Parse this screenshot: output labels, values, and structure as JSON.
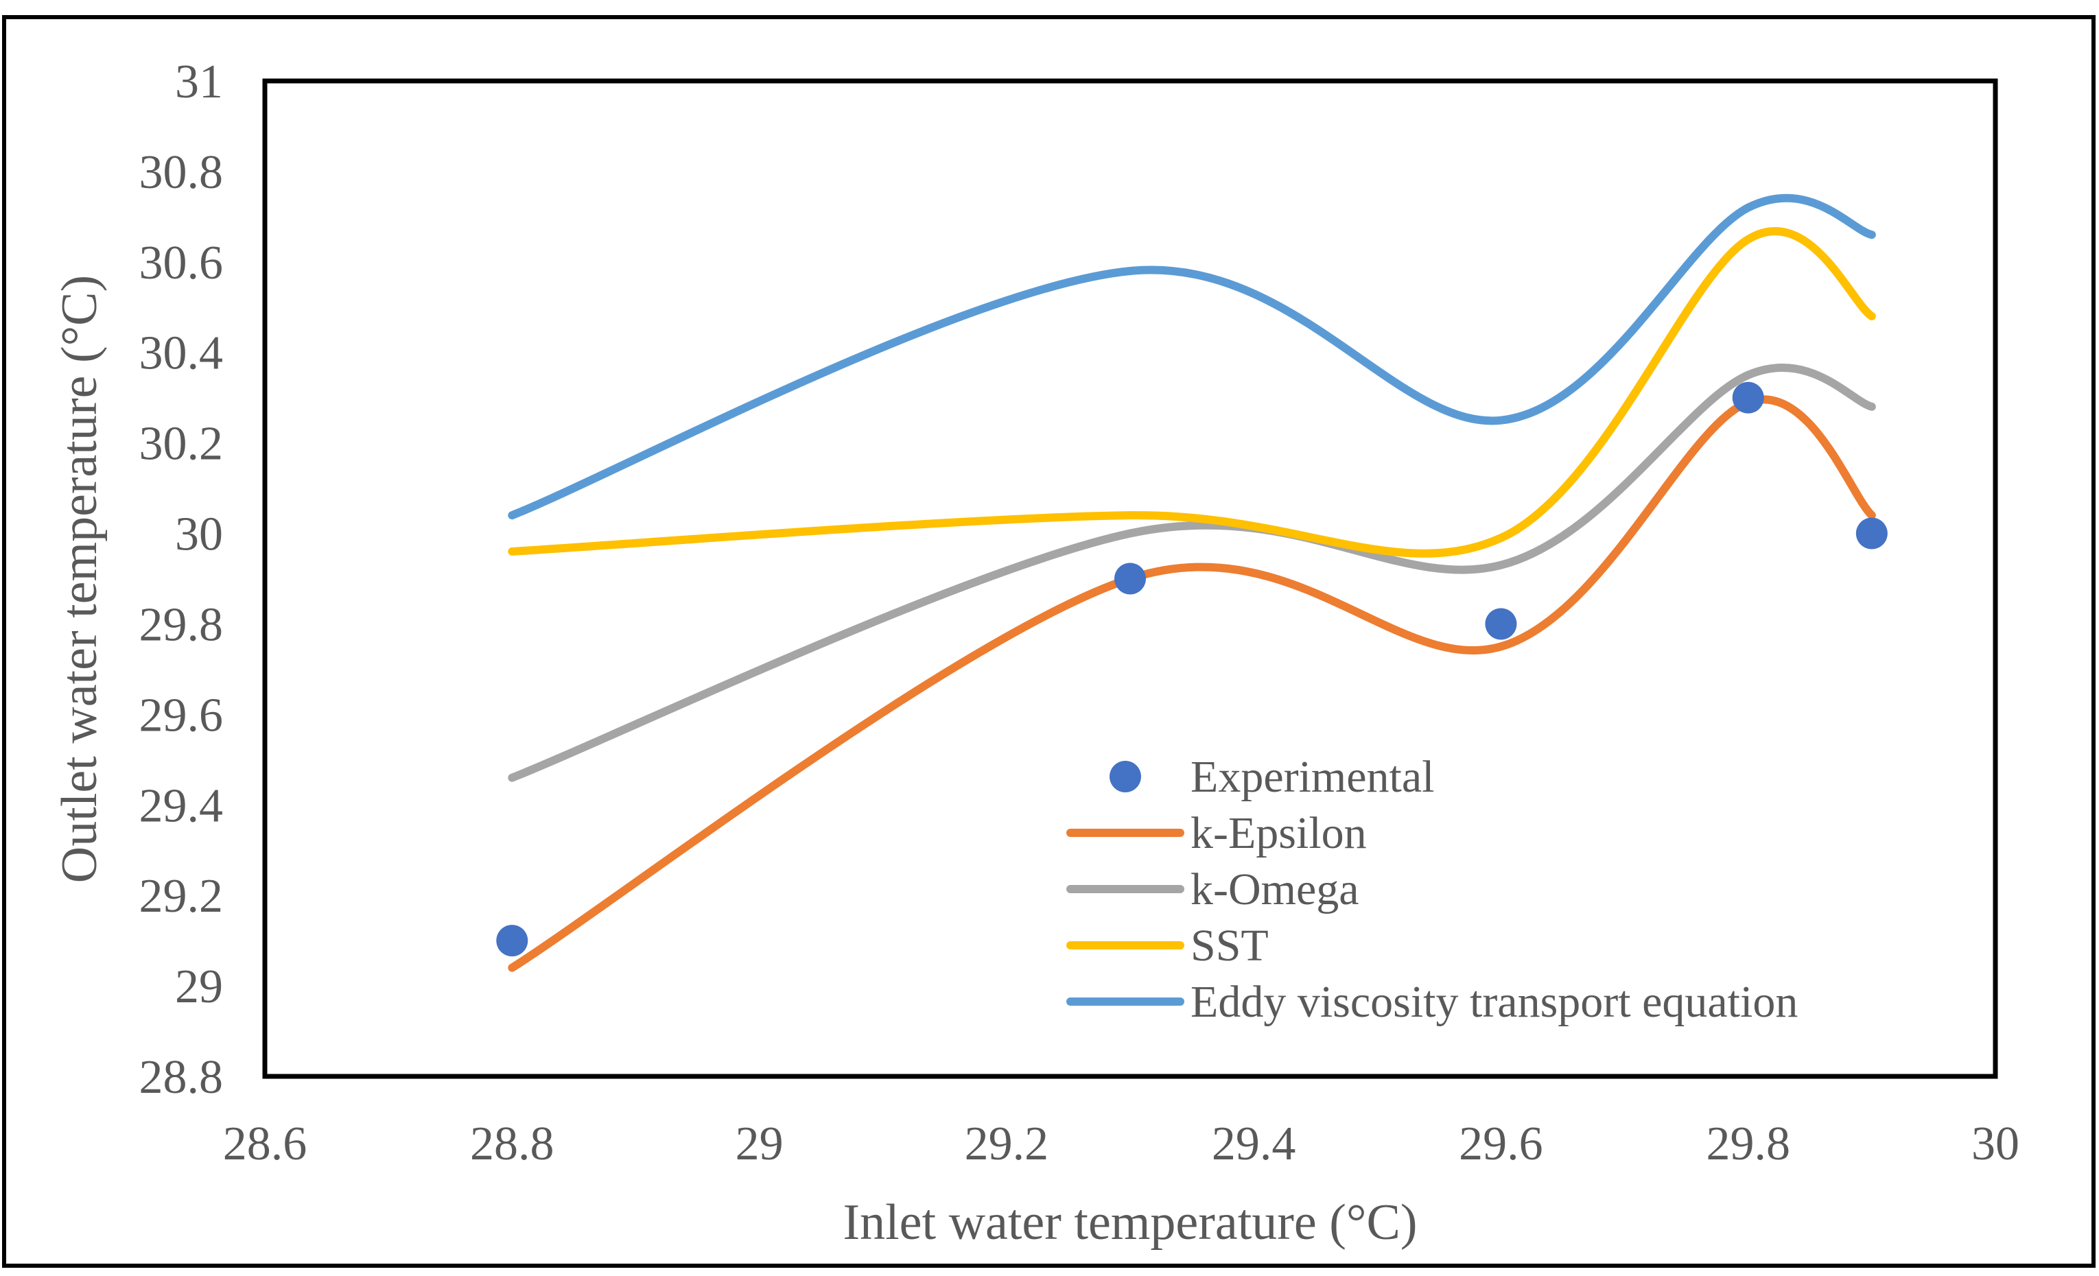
{
  "chart_data": {
    "type": "line",
    "title": "",
    "xlabel": "Inlet water temperature (°C)",
    "ylabel": "Outlet water temperature (°C)",
    "xlim": [
      28.6,
      30
    ],
    "ylim": [
      28.8,
      31
    ],
    "x_ticks": [
      "28.6",
      "28.8",
      "29",
      "29.2",
      "29.4",
      "29.6",
      "29.8",
      "30"
    ],
    "x_tick_values": [
      28.6,
      28.8,
      29.0,
      29.2,
      29.4,
      29.6,
      29.8,
      30.0
    ],
    "y_ticks": [
      "28.8",
      "29",
      "29.2",
      "29.4",
      "29.6",
      "29.8",
      "30",
      "30.2",
      "30.4",
      "30.6",
      "30.8",
      "31"
    ],
    "y_tick_values": [
      28.8,
      29.0,
      29.2,
      29.4,
      29.6,
      29.8,
      30.0,
      30.2,
      30.4,
      30.6,
      30.8,
      31.0
    ],
    "grid": false,
    "legend_position": "bottom-right",
    "x": [
      28.8,
      29.3,
      29.6,
      29.8,
      29.9
    ],
    "series": [
      {
        "name": "Experimental",
        "kind": "scatter",
        "color": "#4472C4",
        "values": [
          29.1,
          29.9,
          29.8,
          30.3,
          30.0
        ]
      },
      {
        "name": "k-Epsilon",
        "kind": "smooth-line",
        "color": "#ED7D31",
        "values": [
          29.04,
          29.9,
          29.75,
          30.29,
          30.04
        ]
      },
      {
        "name": "k-Omega",
        "kind": "smooth-line",
        "color": "#A5A5A5",
        "values": [
          29.46,
          30.0,
          29.93,
          30.35,
          30.28
        ]
      },
      {
        "name": "SST",
        "kind": "smooth-line",
        "color": "#FFC000",
        "values": [
          29.96,
          30.04,
          29.99,
          30.65,
          30.48
        ]
      },
      {
        "name": "Eddy viscosity transport equation",
        "kind": "smooth-line",
        "color": "#5B9BD5",
        "values": [
          30.04,
          30.58,
          30.25,
          30.72,
          30.66
        ]
      }
    ]
  }
}
